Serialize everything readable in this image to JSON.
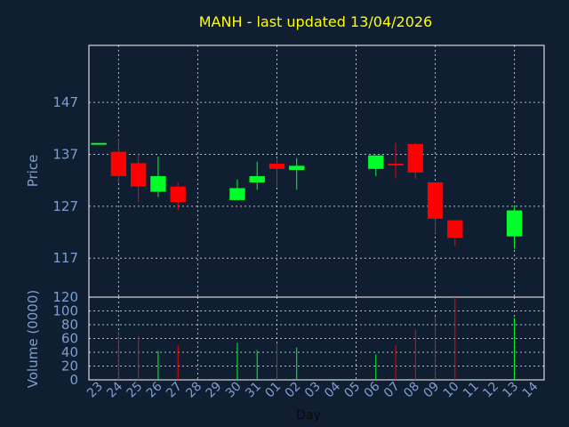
{
  "chart_data": {
    "type": "candlestick",
    "title": "MANH - last updated 13/04/2026",
    "xlabel": "Day",
    "colors": {
      "up": "#00ff2a",
      "down": "#ff0000",
      "background": "#0f1e30",
      "text": "#7f9fd0",
      "title": "#ffff00",
      "grid": "#cfd8e0"
    },
    "categories": [
      "23",
      "24",
      "25",
      "26",
      "27",
      "28",
      "29",
      "30",
      "31",
      "01",
      "02",
      "03",
      "04",
      "05",
      "06",
      "07",
      "08",
      "09",
      "10",
      "11",
      "12",
      "13",
      "14"
    ],
    "price_panel": {
      "ylabel": "Price",
      "ylim": [
        109.5,
        158
      ],
      "yticks": [
        117,
        127,
        137,
        147
      ],
      "grid": true,
      "candles": [
        {
          "x": "23",
          "open": 139.2,
          "high": 139.2,
          "low": 139.2,
          "close": 139.2
        },
        {
          "x": "24",
          "open": 137.5,
          "high": 140.0,
          "low": 131.5,
          "close": 132.8
        },
        {
          "x": "25",
          "open": 135.3,
          "high": 137.2,
          "low": 127.8,
          "close": 130.8
        },
        {
          "x": "26",
          "open": 129.8,
          "high": 136.6,
          "low": 128.8,
          "close": 132.8
        },
        {
          "x": "27",
          "open": 130.8,
          "high": 131.6,
          "low": 126.2,
          "close": 127.8
        },
        {
          "x": "30",
          "open": 128.2,
          "high": 132.2,
          "low": 128.2,
          "close": 130.5
        },
        {
          "x": "31",
          "open": 131.6,
          "high": 135.6,
          "low": 130.2,
          "close": 132.8
        },
        {
          "x": "01",
          "open": 135.2,
          "high": 136.3,
          "low": 130.7,
          "close": 134.2
        },
        {
          "x": "02",
          "open": 134.0,
          "high": 136.3,
          "low": 130.2,
          "close": 134.8
        },
        {
          "x": "06",
          "open": 134.2,
          "high": 136.8,
          "low": 132.8,
          "close": 136.8
        },
        {
          "x": "07",
          "open": 135.2,
          "high": 139.2,
          "low": 132.4,
          "close": 134.9
        },
        {
          "x": "08",
          "open": 139.0,
          "high": 139.2,
          "low": 132.3,
          "close": 133.5
        },
        {
          "x": "09",
          "open": 131.6,
          "high": 131.6,
          "low": 121.8,
          "close": 124.6
        },
        {
          "x": "10",
          "open": 124.3,
          "high": 124.3,
          "low": 119.3,
          "close": 120.9
        },
        {
          "x": "13",
          "open": 121.2,
          "high": 127.2,
          "low": 118.8,
          "close": 126.2
        }
      ]
    },
    "volume_panel": {
      "ylabel": "Volume (0000)",
      "ylim": [
        0,
        120
      ],
      "yticks": [
        0,
        20,
        40,
        60,
        80,
        100,
        120
      ],
      "grid": true,
      "bars": [
        {
          "x": "24",
          "value": 70,
          "color": "#ff0000"
        },
        {
          "x": "25",
          "value": 63,
          "color": "#ff0000"
        },
        {
          "x": "26",
          "value": 42,
          "color": "#00ff2a"
        },
        {
          "x": "27",
          "value": 50,
          "color": "#ff0000"
        },
        {
          "x": "30",
          "value": 54,
          "color": "#00ff2a"
        },
        {
          "x": "31",
          "value": 43,
          "color": "#00ff2a"
        },
        {
          "x": "01",
          "value": 53,
          "color": "#ff0000"
        },
        {
          "x": "02",
          "value": 47,
          "color": "#00ff2a"
        },
        {
          "x": "06",
          "value": 37,
          "color": "#00ff2a"
        },
        {
          "x": "07",
          "value": 50,
          "color": "#ff0000"
        },
        {
          "x": "08",
          "value": 73,
          "color": "#ff0000"
        },
        {
          "x": "09",
          "value": 92,
          "color": "#ff0000"
        },
        {
          "x": "10",
          "value": 120,
          "color": "#ff0000"
        },
        {
          "x": "13",
          "value": 90,
          "color": "#00ff2a"
        }
      ]
    }
  }
}
